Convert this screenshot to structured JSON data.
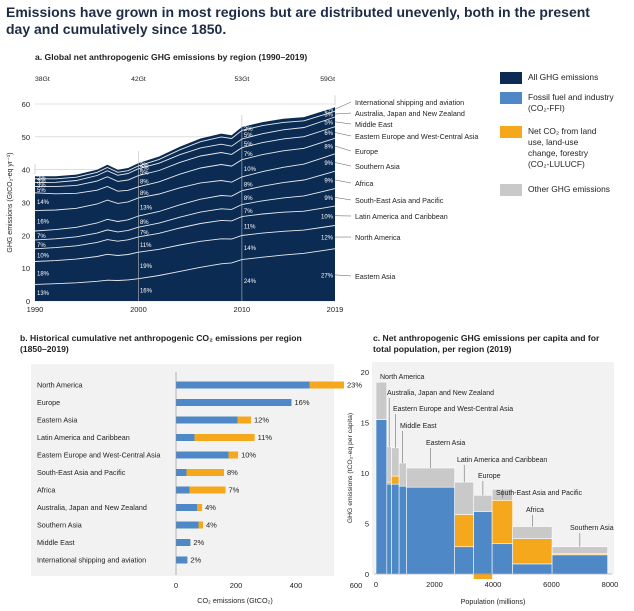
{
  "title": "Emissions have grown in most regions but are distributed unevenly, both in the present day and cumulatively since 1850.",
  "legend": {
    "all_ghg": "All GHG emissions",
    "ffi": "Fossil fuel and industry (CO₂-FFI)",
    "lulucf": "Net CO₂ from land use, land-use change, forestry (CO₂-LULUCF)",
    "other": "Other GHG emissions"
  },
  "colors": {
    "navy": "#0b2b52",
    "ffi": "#4f88c6",
    "lulucf": "#f5a81c",
    "other": "#c9c9c9",
    "grid": "#cccccc",
    "text": "#222222"
  },
  "chart_data": [
    {
      "type": "area",
      "title": "a. Global net anthropogenic GHG emissions by region (1990–2019)",
      "xlabel": "",
      "ylabel": "GHG emissions (GtCO₂-eq yr⁻¹)",
      "xlim": [
        1990,
        2019
      ],
      "ylim": [
        0,
        60
      ],
      "xticks": [
        "1990",
        "2000",
        "2010",
        "2019"
      ],
      "yticks": [
        "0",
        "10",
        "20",
        "30",
        "40",
        "50",
        "60"
      ],
      "totals": {
        "years": [
          1990,
          2000,
          2010,
          2019
        ],
        "labels": [
          "38Gt",
          "42Gt",
          "53Gt",
          "59Gt"
        ]
      },
      "years": [
        1990,
        1992,
        1994,
        1996,
        1997,
        1998,
        1999,
        2000,
        2002,
        2004,
        2006,
        2008,
        2009,
        2010,
        2012,
        2014,
        2016,
        2018,
        2019
      ],
      "total": [
        38,
        38,
        38.5,
        40,
        41.5,
        40,
        40.5,
        42,
        44,
        47,
        49.5,
        51,
        50.5,
        53,
        54.5,
        55.5,
        56,
        58,
        59
      ],
      "regions": [
        "Eastern Asia",
        "North America",
        "Latin America and Caribbean",
        "South-East Asia and Pacific",
        "Africa",
        "Southern Asia",
        "Europe",
        "Eastern Europe and West-Central Asia",
        "Middle East",
        "Australia, Japan and New Zealand",
        "International shipping and aviation"
      ],
      "series": [
        {
          "name": "Eastern Asia",
          "shares": {
            "1990": "13%",
            "2000": "16%",
            "2010": "24%",
            "2019": "27%"
          }
        },
        {
          "name": "North America",
          "shares": {
            "1990": "18%",
            "2000": "19%",
            "2010": "14%",
            "2019": "12%"
          }
        },
        {
          "name": "Latin America and Caribbean",
          "shares": {
            "1990": "10%",
            "2000": "11%",
            "2010": "11%",
            "2019": "10%"
          }
        },
        {
          "name": "South-East Asia and Pacific",
          "shares": {
            "1990": "7%",
            "2000": "7%",
            "2010": "7%",
            "2019": "9%"
          }
        },
        {
          "name": "Africa",
          "shares": {
            "1990": "7%",
            "2000": "8%",
            "2010": "8%",
            "2019": "9%"
          }
        },
        {
          "name": "Southern Asia",
          "shares": {
            "1990": "16%",
            "2000": "13%",
            "2010": "8%",
            "2019": "9%"
          }
        },
        {
          "name": "Europe",
          "shares": {
            "1990": "14%",
            "2000": "8%",
            "2010": "10%",
            "2019": "8%"
          }
        },
        {
          "name": "Eastern Europe and West-Central Asia",
          "shares": {
            "1990": "5%",
            "2000": "8%",
            "2010": "7%",
            "2019": "6%"
          }
        },
        {
          "name": "Middle East",
          "shares": {
            "1990": "3%",
            "2000": "5%",
            "2010": "5%",
            "2019": "5%"
          }
        },
        {
          "name": "Australia, Japan and New Zealand",
          "shares": {
            "1990": "3%",
            "2000": "2%",
            "2010": "5%",
            "2019": "3%"
          }
        },
        {
          "name": "International shipping and aviation",
          "shares": {
            "1990": "2%",
            "2000": "2%",
            "2010": "2%",
            "2019": "2%"
          }
        }
      ]
    },
    {
      "type": "bar",
      "title": "b. Historical cumulative net anthropogenic CO₂ emissions per region (1850–2019)",
      "xlabel": "CO₂ emissions (GtCO₂)",
      "xlim": [
        0,
        750
      ],
      "xticks": [
        "0",
        "200",
        "400",
        "600"
      ],
      "categories": [
        "North America",
        "Europe",
        "Eastern Asia",
        "Latin America and Caribbean",
        "Eastern Europe and West-Central Asia",
        "South-East Asia and Pacific",
        "Africa",
        "Australia, Japan and New Zealand",
        "Southern Asia",
        "Middle East",
        "International shipping and aviation"
      ],
      "series": [
        {
          "name": "Fossil fuel and industry (CO₂-FFI)",
          "values": [
            445,
            385,
            205,
            62,
            175,
            35,
            45,
            70,
            75,
            48,
            38
          ]
        },
        {
          "name": "Net CO₂ from land use, land-use change, forestry (CO₂-LULUCF)",
          "values": [
            115,
            0,
            45,
            200,
            32,
            125,
            120,
            17,
            15,
            0,
            0
          ]
        }
      ],
      "labels": [
        "23%",
        "16%",
        "12%",
        "11%",
        "10%",
        "8%",
        "7%",
        "4%",
        "4%",
        "2%",
        "2%"
      ]
    },
    {
      "type": "bar",
      "title": "c. Net anthropogenic GHG emissions per capita and for total population, per region (2019)",
      "xlabel": "Population (millions)",
      "ylabel": "GHG emissions (tCO₂-eq per capita)",
      "xlim": [
        0,
        8000
      ],
      "ylim": [
        0,
        21
      ],
      "xticks": [
        "0",
        "2000",
        "4000",
        "6000",
        "8000"
      ],
      "yticks": [
        "0",
        "5",
        "10",
        "15",
        "20"
      ],
      "categories": [
        "North America",
        "Australia, Japan and New Zealand",
        "Eastern Europe and West-Central Asia",
        "Middle East",
        "Eastern Asia",
        "Latin America and Caribbean",
        "Europe",
        "South-East Asia and Pacific",
        "Africa",
        "Southern Asia"
      ],
      "population_millions": [
        370,
        160,
        260,
        250,
        1650,
        650,
        630,
        700,
        1350,
        1900
      ],
      "series": [
        {
          "name": "Fossil fuel and industry (CO₂-FFI)",
          "values": [
            15.3,
            8.9,
            8.9,
            8.7,
            8.6,
            2.7,
            6.2,
            3.0,
            1.0,
            1.9
          ]
        },
        {
          "name": "Net CO₂ from land use, land-use change, forestry (CO₂-LULUCF)",
          "values": [
            0,
            0.2,
            0.8,
            0,
            0,
            3.2,
            -0.5,
            4.3,
            2.5,
            0.1
          ]
        },
        {
          "name": "Other GHG emissions",
          "values": [
            3.7,
            3.5,
            2.8,
            2.3,
            1.9,
            3.2,
            1.6,
            1.1,
            1.2,
            0.7
          ]
        }
      ]
    }
  ]
}
